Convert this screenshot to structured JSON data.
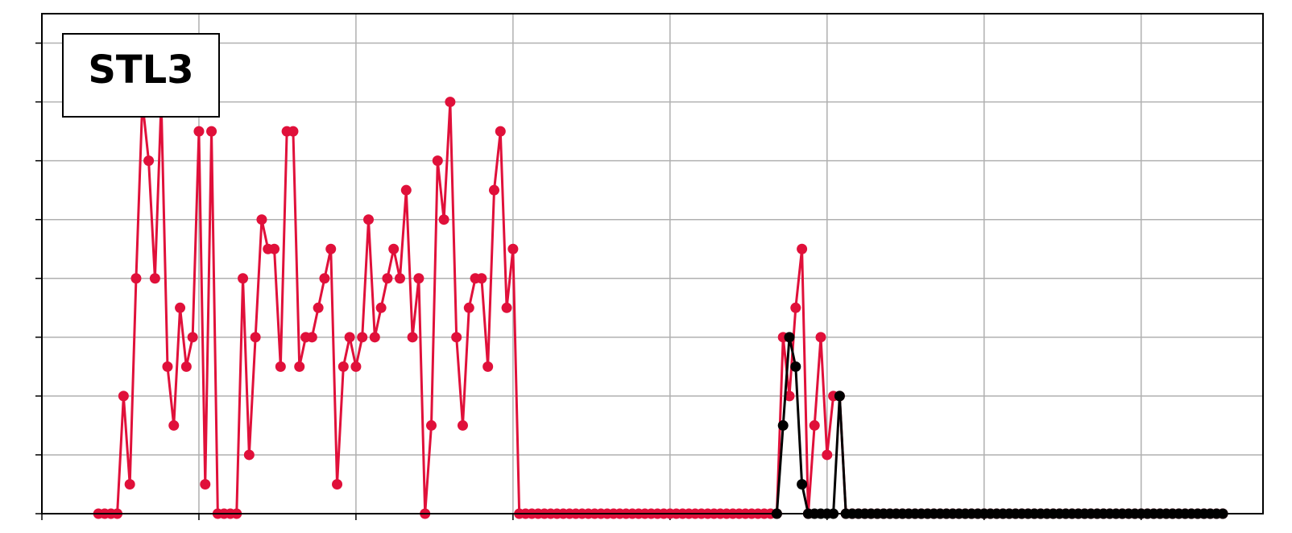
{
  "chart_data": {
    "type": "line",
    "title": "STL3",
    "x": [
      9,
      10,
      11,
      12,
      13,
      14,
      15,
      16,
      17,
      18,
      19,
      20,
      21,
      22,
      23,
      24,
      25,
      26,
      27,
      28,
      29,
      30,
      31,
      32,
      33,
      34,
      35,
      36,
      37,
      38,
      39,
      40,
      41,
      42,
      43,
      44,
      45,
      46,
      47,
      48,
      49,
      50,
      51,
      52,
      53,
      54,
      55,
      56,
      57,
      58,
      59,
      60,
      61,
      62,
      63,
      64,
      65,
      66,
      67,
      68,
      69,
      70,
      71,
      72,
      73,
      74,
      75,
      76,
      77,
      78,
      79,
      80,
      81,
      82,
      83,
      84,
      85,
      86,
      87,
      88,
      89,
      90,
      91,
      92,
      93,
      94,
      95,
      96,
      97,
      98,
      99,
      100,
      101,
      102,
      103,
      104,
      105,
      106,
      107,
      108,
      109,
      110,
      111,
      112,
      113,
      114,
      115,
      116,
      117,
      118,
      119,
      120,
      121,
      122,
      123,
      124,
      125,
      126,
      127,
      128,
      129,
      130,
      131,
      132,
      133,
      134,
      135,
      136,
      137,
      138,
      139,
      140,
      141,
      142,
      143,
      144,
      145,
      146,
      147,
      148,
      149,
      150,
      151,
      152,
      153,
      154,
      155,
      156,
      157,
      158,
      159,
      160,
      161,
      162,
      163,
      164,
      165,
      166,
      167,
      168,
      169,
      170,
      171,
      172,
      173,
      174,
      175,
      176,
      177,
      178,
      179,
      180,
      181,
      182,
      183,
      184,
      185,
      186,
      187,
      188
    ],
    "series": [
      {
        "color": "#e0103a",
        "values": [
          0,
          0,
          0,
          0,
          2,
          0.5,
          4,
          7,
          6,
          4,
          7,
          2.5,
          1.5,
          3.5,
          2.5,
          3,
          6.5,
          0.5,
          6.5,
          0,
          0,
          0,
          0,
          4,
          1,
          3,
          5,
          4.5,
          4.5,
          2.5,
          6.5,
          6.5,
          2.5,
          3,
          3,
          3.5,
          4,
          4.5,
          0.5,
          2.5,
          3,
          2.5,
          3,
          5,
          3,
          3.5,
          4,
          4.5,
          4,
          5.5,
          3,
          4,
          0,
          1.5,
          6,
          5,
          7,
          3,
          1.5,
          3.5,
          4,
          4,
          2.5,
          5.5,
          6.5,
          3.5,
          4.5,
          0,
          0,
          0,
          0,
          0,
          0,
          0,
          0,
          0,
          0,
          0,
          0,
          0,
          0,
          0,
          0,
          0,
          0,
          0,
          0,
          0,
          0,
          0,
          0,
          0,
          0,
          0,
          0,
          0,
          0,
          0,
          0,
          0,
          0,
          0,
          0,
          0,
          0,
          0,
          0,
          0,
          0,
          3,
          2,
          3.5,
          4.5,
          0,
          1.5,
          3,
          1,
          2,
          2,
          0,
          0,
          0,
          0,
          0,
          0,
          0,
          0,
          0,
          0,
          0,
          0,
          0,
          0,
          0,
          0,
          0,
          0,
          0,
          0,
          0,
          0,
          0,
          0,
          0,
          0,
          0,
          0,
          0,
          0,
          0,
          0,
          0,
          0,
          0,
          0,
          0,
          0,
          0,
          0,
          0,
          0,
          0,
          0,
          0,
          0,
          0,
          0,
          0,
          0,
          0,
          0,
          0,
          0,
          0,
          0,
          0,
          0,
          0,
          0,
          0
        ]
      },
      {
        "color": "#000000",
        "values": [
          null,
          null,
          null,
          null,
          null,
          null,
          null,
          null,
          null,
          null,
          null,
          null,
          null,
          null,
          null,
          null,
          null,
          null,
          null,
          null,
          null,
          null,
          null,
          null,
          null,
          null,
          null,
          null,
          null,
          null,
          null,
          null,
          null,
          null,
          null,
          null,
          null,
          null,
          null,
          null,
          null,
          null,
          null,
          null,
          null,
          null,
          null,
          null,
          null,
          null,
          null,
          null,
          null,
          null,
          null,
          null,
          null,
          null,
          null,
          null,
          null,
          null,
          null,
          null,
          null,
          null,
          null,
          null,
          null,
          null,
          null,
          null,
          null,
          null,
          null,
          null,
          null,
          null,
          null,
          null,
          null,
          null,
          null,
          null,
          null,
          null,
          null,
          null,
          null,
          null,
          null,
          null,
          null,
          null,
          null,
          null,
          null,
          null,
          null,
          null,
          null,
          null,
          null,
          null,
          null,
          null,
          null,
          null,
          0,
          1.5,
          3,
          2.5,
          0.5,
          0,
          0,
          0,
          0,
          0,
          2,
          0,
          0,
          0,
          0,
          0,
          0,
          0,
          0,
          0,
          0,
          0,
          0,
          0,
          0,
          0,
          0,
          0,
          0,
          0,
          0,
          0,
          0,
          0,
          0,
          0,
          0,
          0,
          0,
          0,
          0,
          0,
          0,
          0,
          0,
          0,
          0,
          0,
          0,
          0,
          0,
          0,
          0,
          0,
          0,
          0,
          0,
          0,
          0,
          0,
          0,
          0,
          0,
          0,
          0,
          0,
          0,
          0,
          0,
          0,
          0,
          0
        ]
      }
    ],
    "xlim": [
      0,
      194.4
    ],
    "xticks": [
      0,
      25,
      50,
      75,
      100,
      125,
      150,
      175
    ],
    "ylim": [
      0,
      8.5
    ],
    "yticks": [
      0,
      1,
      2,
      3,
      4,
      5,
      6,
      7,
      8
    ],
    "grid": true
  }
}
